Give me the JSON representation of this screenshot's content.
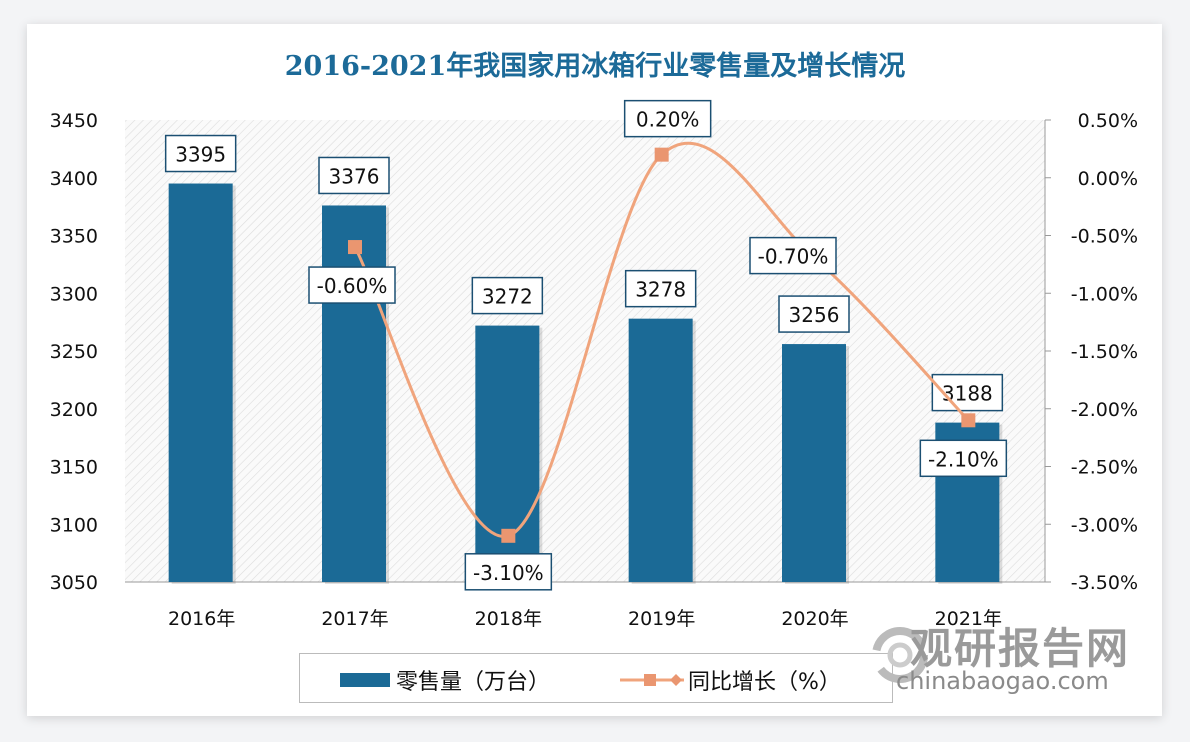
{
  "chart_data": {
    "type": "bar+line",
    "title": "2016-2021年我国家用冰箱行业零售量及增长情况",
    "categories": [
      "2016年",
      "2017年",
      "2018年",
      "2019年",
      "2020年",
      "2021年"
    ],
    "series": [
      {
        "name": "零售量（万台）",
        "type": "bar",
        "axis": "left",
        "values": [
          3395,
          3376,
          3272,
          3278,
          3256,
          3188
        ],
        "labels": [
          "3395",
          "3376",
          "3272",
          "3278",
          "3256",
          "3188"
        ],
        "color": "#1b6a96"
      },
      {
        "name": "同比增长（%）",
        "type": "line",
        "axis": "right",
        "smooth": true,
        "values": [
          null,
          -0.6,
          -3.1,
          0.2,
          -0.7,
          -2.1
        ],
        "labels": [
          "",
          "-0.60%",
          "-3.10%",
          "0.20%",
          "-0.70%",
          "-2.10%"
        ],
        "color": "#f0a47c",
        "marker": "square"
      }
    ],
    "y_left": {
      "min": 3050,
      "max": 3450,
      "ticks": [
        "3450",
        "3400",
        "3350",
        "3300",
        "3250",
        "3200",
        "3150",
        "3100",
        "3050"
      ]
    },
    "y_right": {
      "min": -3.5,
      "max": 0.5,
      "ticks": [
        "0.50%",
        "0.00%",
        "-0.50%",
        "-1.00%",
        "-1.50%",
        "-2.00%",
        "-2.50%",
        "-3.00%",
        "-3.50%"
      ]
    },
    "legend": "bottom",
    "background": "diagonal hatch"
  },
  "watermark": {
    "name": "观研报告网",
    "url": "chinabaogao.com"
  }
}
